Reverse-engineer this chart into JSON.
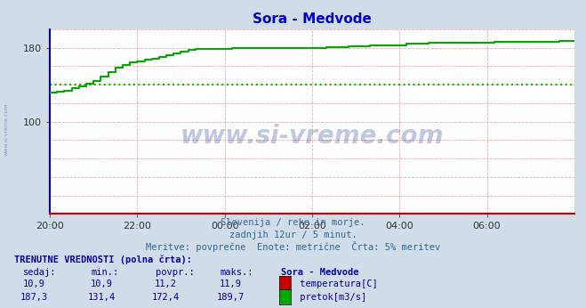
{
  "title": "Sora - Medvode",
  "title_color": "#0000cc",
  "outer_bg": "#d0dce8",
  "plot_bg": "#ffffff",
  "grid_color_red": "#ff9999",
  "grid_color_blue": "#aaccee",
  "avg_flow_value": 140,
  "avg_flow_color": "#00bb00",
  "temp_color": "#cc0000",
  "flow_color": "#00aa00",
  "axis_left_color": "#0000cc",
  "axis_bottom_color": "#cc0000",
  "arrow_color": "#cc0000",
  "watermark_text": "www.si-vreme.com",
  "watermark_color": "#1a3a8a",
  "watermark_alpha": 0.28,
  "side_text": "www.si-vreme.com",
  "side_text_color": "#5577aa",
  "subtitle1": "Slovenija / reke in morje.",
  "subtitle2": "zadnjih 12ur / 5 minut.",
  "subtitle3": "Meritve: povprečne  Enote: metrične  Črta: 5% meritev",
  "subtitle_color": "#336699",
  "table_header": "TRENUTNE VREDNOSTI (polna črta):",
  "table_color": "#0000aa",
  "col_headers": [
    "sedaj:",
    "min.:",
    "povpr.:",
    "maks.:",
    "Sora - Medvode"
  ],
  "row1_values": [
    "10,9",
    "10,9",
    "11,2",
    "11,9"
  ],
  "row1_label": "temperatura[C]",
  "row1_swatch": "#cc0000",
  "row2_values": [
    "187,3",
    "131,4",
    "172,4",
    "189,7"
  ],
  "row2_label": "pretok[m3/s]",
  "row2_swatch": "#00aa00",
  "xtick_labels": [
    "20:00",
    "22:00",
    "00:00",
    "02:00",
    "04:00",
    "06:00"
  ],
  "xtick_pos": [
    0,
    24,
    48,
    72,
    96,
    120
  ],
  "ytick_vals": [
    100,
    180
  ],
  "xlim": [
    0,
    144
  ],
  "ylim": [
    0,
    200
  ],
  "flow_x": [
    0,
    2,
    4,
    6,
    8,
    10,
    12,
    14,
    16,
    18,
    20,
    22,
    24,
    26,
    28,
    30,
    32,
    34,
    36,
    38,
    40,
    42,
    44,
    46,
    48,
    50,
    52,
    54,
    56,
    58,
    60,
    62,
    64,
    66,
    68,
    70,
    72,
    74,
    76,
    78,
    80,
    82,
    84,
    86,
    88,
    90,
    92,
    94,
    96,
    98,
    100,
    102,
    104,
    106,
    108,
    110,
    112,
    114,
    116,
    118,
    120,
    122,
    124,
    126,
    128,
    130,
    132,
    134,
    136,
    138,
    140,
    142,
    144
  ],
  "flow_y": [
    131,
    132,
    133,
    136,
    138,
    141,
    144,
    149,
    154,
    158,
    161,
    164,
    165,
    167,
    168,
    170,
    172,
    174,
    176,
    178,
    179,
    179,
    179,
    179,
    179,
    180,
    180,
    180,
    180,
    180,
    180,
    180,
    180,
    180,
    180,
    180,
    180,
    180,
    181,
    181,
    181,
    182,
    182,
    182,
    183,
    183,
    183,
    183,
    183,
    184,
    184,
    184,
    185,
    185,
    185,
    185,
    185,
    185,
    185,
    185,
    185,
    186,
    186,
    186,
    186,
    186,
    186,
    186,
    186,
    186,
    187,
    187,
    187
  ]
}
